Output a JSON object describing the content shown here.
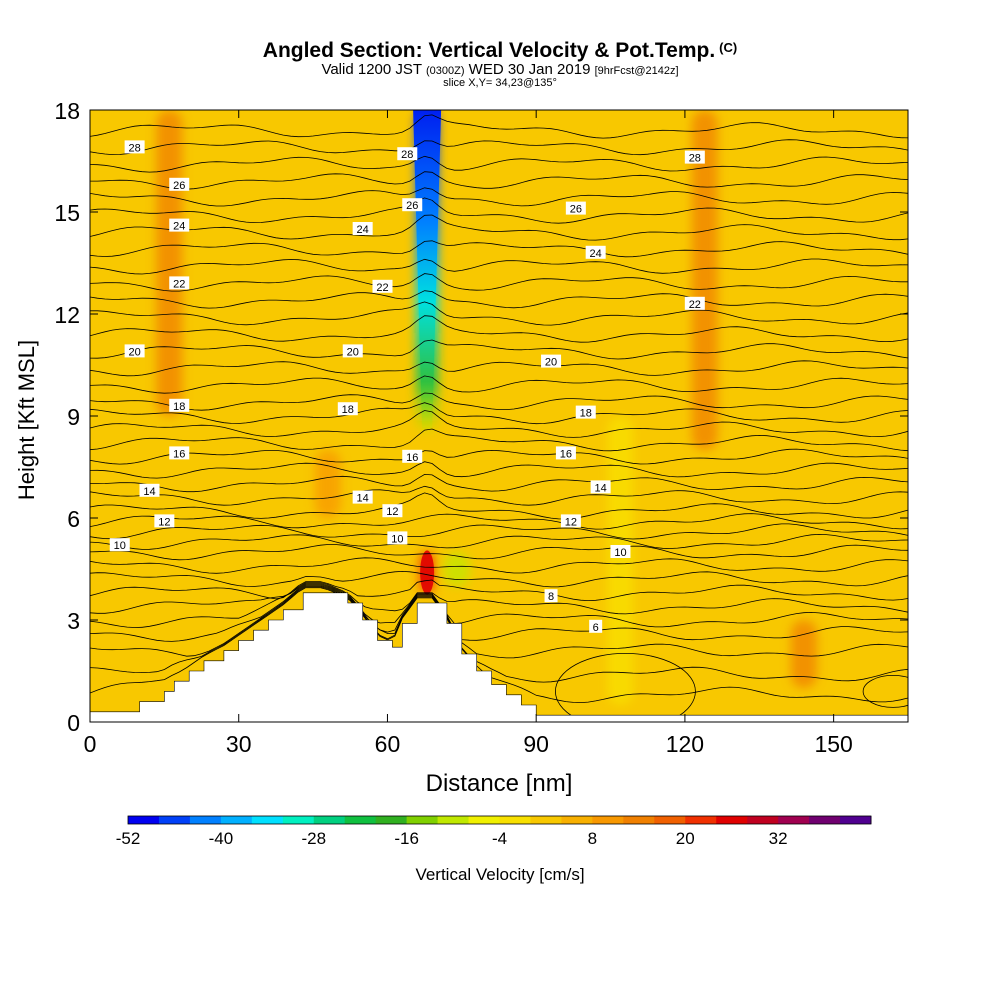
{
  "chart_data": {
    "type": "heatmap",
    "title": "Angled Section: Vertical Velocity & Pot.Temp.",
    "title_unit": "(C)",
    "subtitle": {
      "valid_prefix": "Valid 1200 JST",
      "zulu": "(0300Z)",
      "date": "WED 30 Jan 2019",
      "forecast": "[9hrFcst@2142z]"
    },
    "slice_label": "slice X,Y= 34,23@135°",
    "xlabel": "Distance [nm]",
    "ylabel": "Height [Kft MSL]",
    "xlim": [
      0,
      165
    ],
    "ylim": [
      0,
      18
    ],
    "x_ticks": [
      0,
      30,
      60,
      90,
      120,
      150
    ],
    "y_ticks": [
      0,
      3,
      6,
      9,
      12,
      15,
      18
    ],
    "grid": false,
    "colorbar": {
      "label": "Vertical Velocity [cm/s]",
      "tick_labels": [
        "-52",
        "-40",
        "-28",
        "-16",
        "-4",
        "8",
        "20",
        "32"
      ],
      "tick_values": [
        -52,
        -40,
        -28,
        -16,
        -4,
        8,
        20,
        32
      ],
      "range": [
        -52,
        44
      ],
      "colors": [
        "#0000f0",
        "#0040f8",
        "#0080ff",
        "#00b0ff",
        "#00e0ff",
        "#00f0c0",
        "#00d080",
        "#10c040",
        "#30b020",
        "#80d000",
        "#c0e800",
        "#f0f000",
        "#f8e000",
        "#f8c800",
        "#f8b000",
        "#f89800",
        "#f08000",
        "#f06000",
        "#f03000",
        "#e00000",
        "#c00020",
        "#a00050",
        "#700070",
        "#500090"
      ]
    },
    "terrain_profile": {
      "x": [
        0,
        10,
        15,
        17,
        20,
        23,
        27,
        30,
        33,
        36,
        39,
        43,
        47,
        52,
        55,
        58,
        61,
        63,
        66,
        69,
        72,
        75,
        78,
        81,
        84,
        87,
        90,
        165
      ],
      "height": [
        0.3,
        0.6,
        0.9,
        1.2,
        1.5,
        1.8,
        2.1,
        2.4,
        2.7,
        3.0,
        3.3,
        3.8,
        3.8,
        3.5,
        3.0,
        2.4,
        2.2,
        2.9,
        3.5,
        3.5,
        2.9,
        2.0,
        1.5,
        1.1,
        0.8,
        0.5,
        0.2,
        0.2
      ]
    },
    "vertical_velocity_features": [
      {
        "x": 68.0,
        "z_min": 8.5,
        "z_max": 18.0,
        "value": -52
      },
      {
        "x": 68.0,
        "z_min": 3.8,
        "z_max": 5.0,
        "value": 22
      },
      {
        "x": 16.0,
        "z_min": 9.0,
        "z_max": 18.0,
        "value": 14
      },
      {
        "x": 124.0,
        "z_min": 8.0,
        "z_max": 18.0,
        "value": 12
      },
      {
        "x": 74.0,
        "z_min": 4.0,
        "z_max": 5.0,
        "value": -10
      },
      {
        "x": 107.0,
        "z_min": 0.5,
        "z_max": 9.0,
        "value": -4
      },
      {
        "x": 48.0,
        "z_min": 6.0,
        "z_max": 8.0,
        "value": 10
      },
      {
        "x": 144.0,
        "z_min": 1.0,
        "z_max": 3.0,
        "value": 12
      }
    ],
    "pot_temp_labels": [
      {
        "text": "28",
        "x": 9,
        "z": 16.9
      },
      {
        "text": "26",
        "x": 18,
        "z": 15.8
      },
      {
        "text": "24",
        "x": 18,
        "z": 14.6
      },
      {
        "text": "22",
        "x": 18,
        "z": 12.9
      },
      {
        "text": "20",
        "x": 9,
        "z": 10.9
      },
      {
        "text": "18",
        "x": 18,
        "z": 9.3
      },
      {
        "text": "16",
        "x": 18,
        "z": 7.9
      },
      {
        "text": "14",
        "x": 12,
        "z": 6.8
      },
      {
        "text": "12",
        "x": 15,
        "z": 5.9
      },
      {
        "text": "10",
        "x": 6,
        "z": 5.2
      },
      {
        "text": "24",
        "x": 55,
        "z": 14.5
      },
      {
        "text": "22",
        "x": 59,
        "z": 12.8
      },
      {
        "text": "20",
        "x": 53,
        "z": 10.9
      },
      {
        "text": "18",
        "x": 52,
        "z": 9.2
      },
      {
        "text": "14",
        "x": 55,
        "z": 6.6
      },
      {
        "text": "12",
        "x": 61,
        "z": 6.2
      },
      {
        "text": "10",
        "x": 62,
        "z": 5.4
      },
      {
        "text": "28",
        "x": 64,
        "z": 16.7
      },
      {
        "text": "26",
        "x": 65,
        "z": 15.2
      },
      {
        "text": "16",
        "x": 65,
        "z": 7.8
      },
      {
        "text": "26",
        "x": 98,
        "z": 15.1
      },
      {
        "text": "24",
        "x": 102,
        "z": 13.8
      },
      {
        "text": "20",
        "x": 93,
        "z": 10.6
      },
      {
        "text": "18",
        "x": 100,
        "z": 9.1
      },
      {
        "text": "16",
        "x": 96,
        "z": 7.9
      },
      {
        "text": "14",
        "x": 103,
        "z": 6.9
      },
      {
        "text": "12",
        "x": 97,
        "z": 5.9
      },
      {
        "text": "10",
        "x": 107,
        "z": 5.0
      },
      {
        "text": "8",
        "x": 93,
        "z": 3.7
      },
      {
        "text": "6",
        "x": 102,
        "z": 2.8
      },
      {
        "text": "28",
        "x": 122,
        "z": 16.6
      },
      {
        "text": "22",
        "x": 122,
        "z": 12.3
      }
    ]
  }
}
